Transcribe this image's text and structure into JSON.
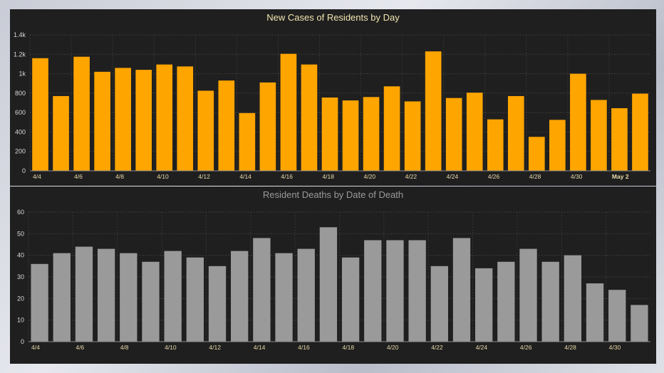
{
  "chart_data": [
    {
      "type": "bar",
      "title": "New Cases of Residents by Day",
      "xlabel": "",
      "ylabel": "",
      "ylim": [
        0,
        1400
      ],
      "grid": true,
      "bar_color": "#ffa500",
      "title_color": "#f2e4b0",
      "yticks": [
        "0",
        "200",
        "400",
        "600",
        "800",
        "1k",
        "1.2k",
        "1.4k"
      ],
      "ytick_values": [
        0,
        200,
        400,
        600,
        800,
        1000,
        1200,
        1400
      ],
      "categories": [
        "4/4",
        "4/5",
        "4/6",
        "4/7",
        "4/8",
        "4/9",
        "4/10",
        "4/11",
        "4/12",
        "4/13",
        "4/14",
        "4/15",
        "4/16",
        "4/17",
        "4/18",
        "4/19",
        "4/20",
        "4/21",
        "4/22",
        "4/23",
        "4/24",
        "4/25",
        "4/26",
        "4/27",
        "4/28",
        "4/29",
        "4/30",
        "May 1",
        "May 2",
        "May 3"
      ],
      "values": [
        1160,
        770,
        1175,
        1020,
        1060,
        1040,
        1095,
        1075,
        825,
        930,
        595,
        910,
        1205,
        1095,
        755,
        725,
        760,
        870,
        715,
        1230,
        750,
        805,
        530,
        770,
        350,
        525,
        1000,
        730,
        645,
        795
      ],
      "xtick_labels": [
        {
          "index": 0,
          "label": "4/4"
        },
        {
          "index": 2,
          "label": "4/6"
        },
        {
          "index": 4,
          "label": "4/8"
        },
        {
          "index": 6,
          "label": "4/10"
        },
        {
          "index": 8,
          "label": "4/12"
        },
        {
          "index": 10,
          "label": "4/14"
        },
        {
          "index": 12,
          "label": "4/16"
        },
        {
          "index": 14,
          "label": "4/18"
        },
        {
          "index": 16,
          "label": "4/20"
        },
        {
          "index": 18,
          "label": "4/22"
        },
        {
          "index": 20,
          "label": "4/24"
        },
        {
          "index": 22,
          "label": "4/26"
        },
        {
          "index": 24,
          "label": "4/28"
        },
        {
          "index": 26,
          "label": "4/30"
        },
        {
          "index": 28,
          "label": "May 2"
        }
      ]
    },
    {
      "type": "bar",
      "title": "Resident Deaths by Date of Death",
      "xlabel": "",
      "ylabel": "",
      "ylim": [
        0,
        60
      ],
      "grid": true,
      "bar_color": "#9a9a9a",
      "title_color": "#9a9a9a",
      "yticks": [
        "0",
        "10",
        "20",
        "30",
        "40",
        "50",
        "60"
      ],
      "ytick_values": [
        0,
        10,
        20,
        30,
        40,
        50,
        60
      ],
      "categories": [
        "4/4",
        "4/5",
        "4/6",
        "4/7",
        "4/8",
        "4/9",
        "4/10",
        "4/11",
        "4/12",
        "4/13",
        "4/14",
        "4/15",
        "4/16",
        "4/17",
        "4/18",
        "4/19",
        "4/20",
        "4/21",
        "4/22",
        "4/23",
        "4/24",
        "4/25",
        "4/26",
        "4/27",
        "4/28",
        "4/29",
        "4/30",
        "5/1"
      ],
      "values": [
        36,
        41,
        44,
        43,
        41,
        37,
        42,
        39,
        35,
        42,
        48,
        41,
        43,
        53,
        39,
        47,
        47,
        47,
        35,
        48,
        34,
        37,
        43,
        37,
        40,
        27,
        24,
        17
      ],
      "xtick_labels": [
        {
          "index": 0,
          "label": "4/4"
        },
        {
          "index": 2,
          "label": "4/6"
        },
        {
          "index": 4,
          "label": "4/8"
        },
        {
          "index": 6,
          "label": "4/10"
        },
        {
          "index": 8,
          "label": "4/12"
        },
        {
          "index": 10,
          "label": "4/14"
        },
        {
          "index": 12,
          "label": "4/16"
        },
        {
          "index": 14,
          "label": "4/18"
        },
        {
          "index": 16,
          "label": "4/20"
        },
        {
          "index": 18,
          "label": "4/22"
        },
        {
          "index": 20,
          "label": "4/24"
        },
        {
          "index": 22,
          "label": "4/26"
        },
        {
          "index": 24,
          "label": "4/28"
        },
        {
          "index": 26,
          "label": "4/30"
        }
      ]
    }
  ]
}
